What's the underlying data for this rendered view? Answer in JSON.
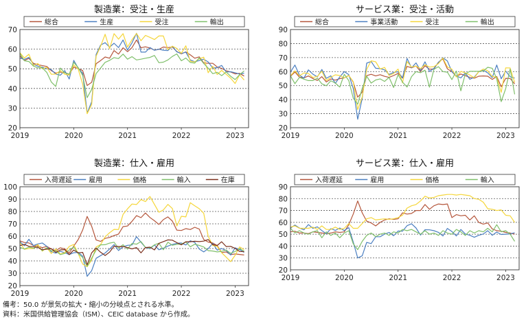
{
  "chart_data": [
    {
      "type": "line",
      "title": "製造業：受注・生産",
      "ylim": [
        20,
        70
      ],
      "yticks": [
        20,
        30,
        40,
        50,
        60,
        70
      ],
      "xticks": [
        "2019",
        "2020",
        "2021",
        "2022",
        "2023"
      ],
      "x_start": "2019-01",
      "series": [
        {
          "name": "総合",
          "color": "#b4553a",
          "values": [
            56.6,
            54.2,
            55.3,
            52.8,
            52.1,
            51.6,
            51.2,
            49.1,
            47.8,
            48.3,
            48.1,
            47.2,
            50.9,
            50.1,
            49.1,
            41.5,
            43.1,
            52.6,
            54.2,
            56.0,
            55.4,
            59.3,
            57.5,
            60.7,
            58.7,
            60.8,
            64.7,
            60.7,
            61.2,
            60.6,
            59.5,
            59.9,
            61.1,
            60.8,
            61.1,
            58.8,
            57.6,
            58.6,
            57.1,
            55.4,
            56.1,
            53.0,
            52.8,
            52.8,
            50.9,
            50.2,
            49.0,
            48.4,
            47.4,
            47.7,
            46.3
          ]
        },
        {
          "name": "生産",
          "color": "#4a7ec0",
          "values": [
            55.5,
            54.8,
            55.8,
            52.3,
            51.3,
            50.8,
            50.0,
            49.5,
            47.3,
            46.7,
            49.1,
            44.8,
            54.3,
            50.3,
            47.7,
            27.5,
            33.2,
            57.3,
            62.1,
            63.3,
            61.0,
            63.0,
            60.8,
            64.7,
            59.5,
            63.2,
            68.1,
            58.5,
            58.5,
            60.8,
            59.4,
            60.0,
            59.4,
            59.3,
            61.5,
            58.6,
            57.8,
            58.5,
            54.5,
            53.6,
            54.2,
            54.9,
            53.5,
            50.4,
            50.6,
            51.7,
            48.4,
            48.5,
            48.0,
            47.3,
            47.8
          ]
        },
        {
          "name": "受注",
          "color": "#f5d63a",
          "values": [
            58.2,
            55.5,
            57.4,
            51.7,
            52.7,
            50.0,
            50.8,
            47.2,
            47.3,
            49.1,
            47.2,
            46.8,
            52.0,
            49.8,
            42.2,
            27.1,
            31.8,
            56.4,
            61.5,
            67.6,
            60.2,
            67.9,
            65.1,
            67.9,
            61.1,
            64.8,
            68.0,
            64.3,
            67.0,
            66.0,
            64.9,
            66.7,
            66.7,
            59.8,
            61.5,
            60.4,
            57.9,
            61.7,
            53.8,
            53.5,
            55.1,
            55.9,
            48.0,
            51.3,
            47.1,
            49.2,
            47.2,
            45.2,
            42.5,
            47.0,
            44.3
          ]
        },
        {
          "name": "輸出",
          "color": "#7fbf6a",
          "values": [
            57.8,
            54.1,
            53.7,
            51.4,
            50.5,
            50.5,
            48.1,
            43.3,
            41.0,
            50.4,
            47.9,
            47.3,
            53.3,
            50.6,
            46.6,
            35.3,
            39.5,
            47.6,
            50.4,
            53.3,
            54.3,
            55.7,
            55.2,
            57.5,
            54.9,
            56.2,
            54.5,
            54.9,
            55.4,
            55.8,
            56.8,
            53.1,
            53.4,
            54.5,
            56.3,
            57.6,
            54.1,
            55.5,
            53.2,
            52.9,
            55.6,
            52.7,
            50.3,
            47.5,
            48.2,
            46.5,
            48.4,
            46.2,
            44.5,
            47.0,
            48.9
          ]
        }
      ]
    },
    {
      "type": "line",
      "title": "サービス業：受注・活動",
      "ylim": [
        20,
        90
      ],
      "yticks": [
        20,
        30,
        40,
        50,
        60,
        70,
        80,
        90
      ],
      "xticks": [
        "2019",
        "2020",
        "2021",
        "2022",
        "2023"
      ],
      "x_start": "2019-01",
      "series": [
        {
          "name": "総合",
          "color": "#b4553a",
          "values": [
            56.7,
            59.7,
            56.1,
            55.5,
            56.9,
            55.1,
            53.7,
            56.4,
            52.6,
            54.7,
            53.9,
            55.0,
            55.5,
            57.3,
            52.5,
            41.8,
            45.4,
            57.1,
            58.1,
            56.9,
            57.8,
            56.6,
            55.9,
            57.2,
            58.7,
            55.3,
            63.7,
            62.7,
            64.0,
            60.1,
            64.1,
            61.7,
            61.9,
            66.7,
            69.1,
            62.0,
            59.9,
            56.5,
            58.3,
            57.1,
            55.9,
            55.3,
            56.7,
            56.9,
            56.7,
            54.4,
            56.5,
            49.2,
            55.2,
            55.1,
            51.2
          ]
        },
        {
          "name": "事業活動",
          "color": "#4a7ec0",
          "values": [
            59.7,
            64.7,
            57.4,
            55.4,
            61.2,
            58.2,
            56.2,
            61.5,
            55.2,
            57.0,
            51.6,
            56.2,
            60.0,
            57.8,
            48.0,
            26.0,
            41.0,
            66.0,
            67.2,
            62.4,
            62.1,
            61.2,
            58.0,
            59.4,
            59.9,
            55.5,
            69.4,
            62.7,
            66.2,
            60.8,
            67.0,
            60.1,
            62.3,
            66.5,
            69.8,
            67.6,
            59.9,
            56.9,
            55.5,
            59.1,
            54.5,
            56.1,
            59.9,
            60.9,
            59.1,
            55.7,
            64.7,
            54.9,
            60.4,
            56.3,
            55.4
          ]
        },
        {
          "name": "受注",
          "color": "#f5d63a",
          "values": [
            57.1,
            60.5,
            57.0,
            59.0,
            58.6,
            55.8,
            56.6,
            60.3,
            53.7,
            56.0,
            57.7,
            57.2,
            55.5,
            57.2,
            52.9,
            32.9,
            41.9,
            61.6,
            67.7,
            67.0,
            61.8,
            63.0,
            57.2,
            58.6,
            61.8,
            51.9,
            67.2,
            63.2,
            63.9,
            62.1,
            64.9,
            63.2,
            63.5,
            65.7,
            69.7,
            63.3,
            61.7,
            56.1,
            60.1,
            59.1,
            57.6,
            55.6,
            59.9,
            61.8,
            60.6,
            56.5,
            56.0,
            45.2,
            62.7,
            62.6,
            52.2
          ]
        },
        {
          "name": "輸出",
          "color": "#7fbf6a",
          "values": [
            57.0,
            51.4,
            55.9,
            54.6,
            53.6,
            53.6,
            55.3,
            51.3,
            49.9,
            53.5,
            51.8,
            49.0,
            58.1,
            53.6,
            41.1,
            36.8,
            48.1,
            56.7,
            51.8,
            54.0,
            54.8,
            53.0,
            55.9,
            48.7,
            57.8,
            52.5,
            49.0,
            56.4,
            60.0,
            59.2,
            61.0,
            48.9,
            61.6,
            63.5,
            60.0,
            59.6,
            54.3,
            60.4,
            46.3,
            58.4,
            60.2,
            60.2,
            60.2,
            60.5,
            63.1,
            62.4,
            54.8,
            38.6,
            47.8,
            61.8,
            43.8
          ]
        }
      ]
    },
    {
      "type": "line",
      "title": "製造業：仕入・雇用",
      "ylim": [
        20,
        100
      ],
      "yticks": [
        20,
        30,
        40,
        50,
        60,
        70,
        80,
        90,
        100
      ],
      "xticks": [
        "2019",
        "2020",
        "2021",
        "2022",
        "2023"
      ],
      "x_start": "2019-01",
      "series": [
        {
          "name": "入荷遅延",
          "color": "#b4553a",
          "values": [
            56.2,
            54.9,
            54.5,
            52.5,
            52.0,
            50.7,
            51.7,
            49.6,
            48.2,
            50.6,
            49.8,
            46.5,
            52.0,
            57.3,
            65.0,
            76.0,
            68.0,
            56.9,
            55.8,
            58.2,
            59.0,
            60.5,
            61.7,
            67.7,
            68.2,
            72.0,
            76.6,
            75.0,
            78.8,
            75.1,
            72.5,
            69.5,
            73.4,
            75.6,
            72.2,
            64.9,
            64.6,
            66.1,
            65.4,
            67.2,
            65.7,
            57.3,
            55.2,
            54.5,
            52.4,
            46.8,
            47.2,
            45.1,
            45.6,
            45.2,
            44.8
          ]
        },
        {
          "name": "雇用",
          "color": "#4a7ec0",
          "values": [
            55.5,
            52.3,
            57.5,
            52.4,
            53.7,
            54.5,
            51.7,
            47.4,
            46.3,
            47.7,
            46.6,
            45.1,
            46.6,
            46.9,
            43.8,
            27.5,
            32.1,
            42.1,
            44.3,
            46.4,
            49.6,
            53.2,
            48.4,
            51.5,
            52.6,
            52.9,
            59.6,
            55.1,
            50.9,
            49.9,
            52.9,
            49.0,
            50.2,
            52.0,
            53.3,
            54.2,
            54.5,
            52.9,
            56.3,
            55.0,
            49.6,
            47.3,
            49.9,
            54.2,
            48.7,
            50.0,
            48.4,
            44.8,
            50.6,
            49.1,
            46.9
          ]
        },
        {
          "name": "価格",
          "color": "#f5d63a",
          "values": [
            54.9,
            49.4,
            50.0,
            50.0,
            53.2,
            47.9,
            50.7,
            46.0,
            49.7,
            45.5,
            46.7,
            51.7,
            53.3,
            45.9,
            37.4,
            35.3,
            40.8,
            51.3,
            53.2,
            59.5,
            62.8,
            65.5,
            65.4,
            77.6,
            82.1,
            86.0,
            85.6,
            89.6,
            88.0,
            92.1,
            85.7,
            79.4,
            81.2,
            85.7,
            82.4,
            68.2,
            76.1,
            75.6,
            87.1,
            84.6,
            82.2,
            78.5,
            60.0,
            52.5,
            51.7,
            46.6,
            43.0,
            39.4,
            44.5,
            51.3,
            49.2
          ]
        },
        {
          "name": "輸入",
          "color": "#7fbf6a",
          "values": [
            51.0,
            49.6,
            51.1,
            50.4,
            51.3,
            48.4,
            50.3,
            48.3,
            48.1,
            45.1,
            46.0,
            48.8,
            51.3,
            45.9,
            42.7,
            35.6,
            42.3,
            48.8,
            53.0,
            53.1,
            54.4,
            55.1,
            50.3,
            53.1,
            49.5,
            54.1,
            53.5,
            55.6,
            51.0,
            50.4,
            53.0,
            54.3,
            49.0,
            55.1,
            52.6,
            53.4,
            53.6,
            55.4,
            51.4,
            53.5,
            52.5,
            51.3,
            48.3,
            48.0,
            47.3,
            47.7,
            48.8,
            46.1,
            47.6,
            49.9,
            47.9
          ]
        },
        {
          "name": "在庫",
          "color": "#7a2e1b",
          "values": [
            52.4,
            53.4,
            51.8,
            51.5,
            50.9,
            49.0,
            49.5,
            49.9,
            46.9,
            48.9,
            49.1,
            45.1,
            48.8,
            46.5,
            46.9,
            36.9,
            46.5,
            50.4,
            47.0,
            44.4,
            47.1,
            51.9,
            51.6,
            51.6,
            50.8,
            49.7,
            50.8,
            46.5,
            50.8,
            51.1,
            48.9,
            54.2,
            55.6,
            57.0,
            56.8,
            54.8,
            53.0,
            55.5,
            55.5,
            55.9,
            55.6,
            56.0,
            57.3,
            53.1,
            52.5,
            55.5,
            51.6,
            51.8,
            50.1,
            47.6,
            47.5
          ]
        }
      ]
    },
    {
      "type": "line",
      "title": "サービス業：仕入・雇用",
      "ylim": [
        20,
        90
      ],
      "yticks": [
        20,
        30,
        40,
        50,
        60,
        70,
        80,
        90
      ],
      "xticks": [
        "2019",
        "2020",
        "2021",
        "2022",
        "2023"
      ],
      "x_start": "2019-01",
      "series": [
        {
          "name": "入荷遅延",
          "color": "#b4553a",
          "values": [
            52.0,
            52.5,
            51.0,
            51.0,
            50.5,
            52.0,
            51.5,
            51.0,
            50.5,
            51.0,
            52.0,
            51.5,
            52.0,
            58.0,
            67.0,
            78.0,
            68.0,
            61.0,
            59.5,
            57.0,
            60.0,
            62.0,
            63.0,
            62.5,
            63.0,
            68.0,
            67.0,
            67.5,
            70.0,
            70.0,
            75.0,
            71.0,
            74.0,
            75.5,
            75.0,
            75.5,
            64.0,
            66.5,
            65.5,
            66.0,
            62.0,
            65.5,
            60.0,
            58.5,
            59.5,
            54.5,
            53.0,
            52.5,
            51.5,
            51.0,
            50.0
          ]
        },
        {
          "name": "雇用",
          "color": "#4a7ec0",
          "values": [
            55.2,
            57.8,
            55.2,
            53.7,
            58.1,
            55.0,
            56.2,
            53.1,
            50.4,
            54.7,
            53.2,
            55.2,
            53.1,
            55.6,
            43.5,
            30.0,
            31.8,
            43.1,
            42.1,
            47.9,
            47.9,
            50.1,
            51.5,
            48.7,
            52.7,
            52.6,
            57.2,
            58.8,
            55.3,
            49.3,
            53.8,
            53.7,
            53.0,
            51.6,
            48.5,
            54.9,
            52.3,
            48.5,
            54.0,
            50.2,
            49.1,
            47.4,
            49.1,
            50.2,
            53.0,
            49.1,
            51.8,
            49.8,
            50.0,
            50.3,
            51.3
          ]
        },
        {
          "name": "価格",
          "color": "#f5d63a",
          "values": [
            56.0,
            57.0,
            55.0,
            55.0,
            55.0,
            56.0,
            54.0,
            57.0,
            54.0,
            54.0,
            56.0,
            54.0,
            55.0,
            59.0,
            55.0,
            55.0,
            59.0,
            63.0,
            64.0,
            62.0,
            62.5,
            63.0,
            62.5,
            63.0,
            64.0,
            66.0,
            72.0,
            74.0,
            75.0,
            78.0,
            82.0,
            80.5,
            81.0,
            82.5,
            83.0,
            83.5,
            83.5,
            83.0,
            83.5,
            83.0,
            82.5,
            80.0,
            79.5,
            77.0,
            71.5,
            71.0,
            70.0,
            70.5,
            66.0,
            65.5,
            60.0
          ]
        },
        {
          "name": "輸入",
          "color": "#7fbf6a",
          "values": [
            55.0,
            51.0,
            53.0,
            51.0,
            50.0,
            52.0,
            53.0,
            47.0,
            52.0,
            49.0,
            51.0,
            47.0,
            51.0,
            53.0,
            42.0,
            37.0,
            44.0,
            49.0,
            51.0,
            48.0,
            50.0,
            51.0,
            49.0,
            52.0,
            51.0,
            54.0,
            53.0,
            54.0,
            52.0,
            50.0,
            53.0,
            50.0,
            51.0,
            49.0,
            53.0,
            51.0,
            50.0,
            54.0,
            52.0,
            49.0,
            53.0,
            51.0,
            53.0,
            52.0,
            55.0,
            52.0,
            58.0,
            52.0,
            53.0,
            50.0,
            44.0
          ]
        }
      ]
    }
  ],
  "notes": {
    "line1": "備考：50.0 が景気の拡大・縮小の分岐点とされる水準。",
    "line2": "資料：米国供給管理協会（ISM）、CEIC database から作成。"
  }
}
